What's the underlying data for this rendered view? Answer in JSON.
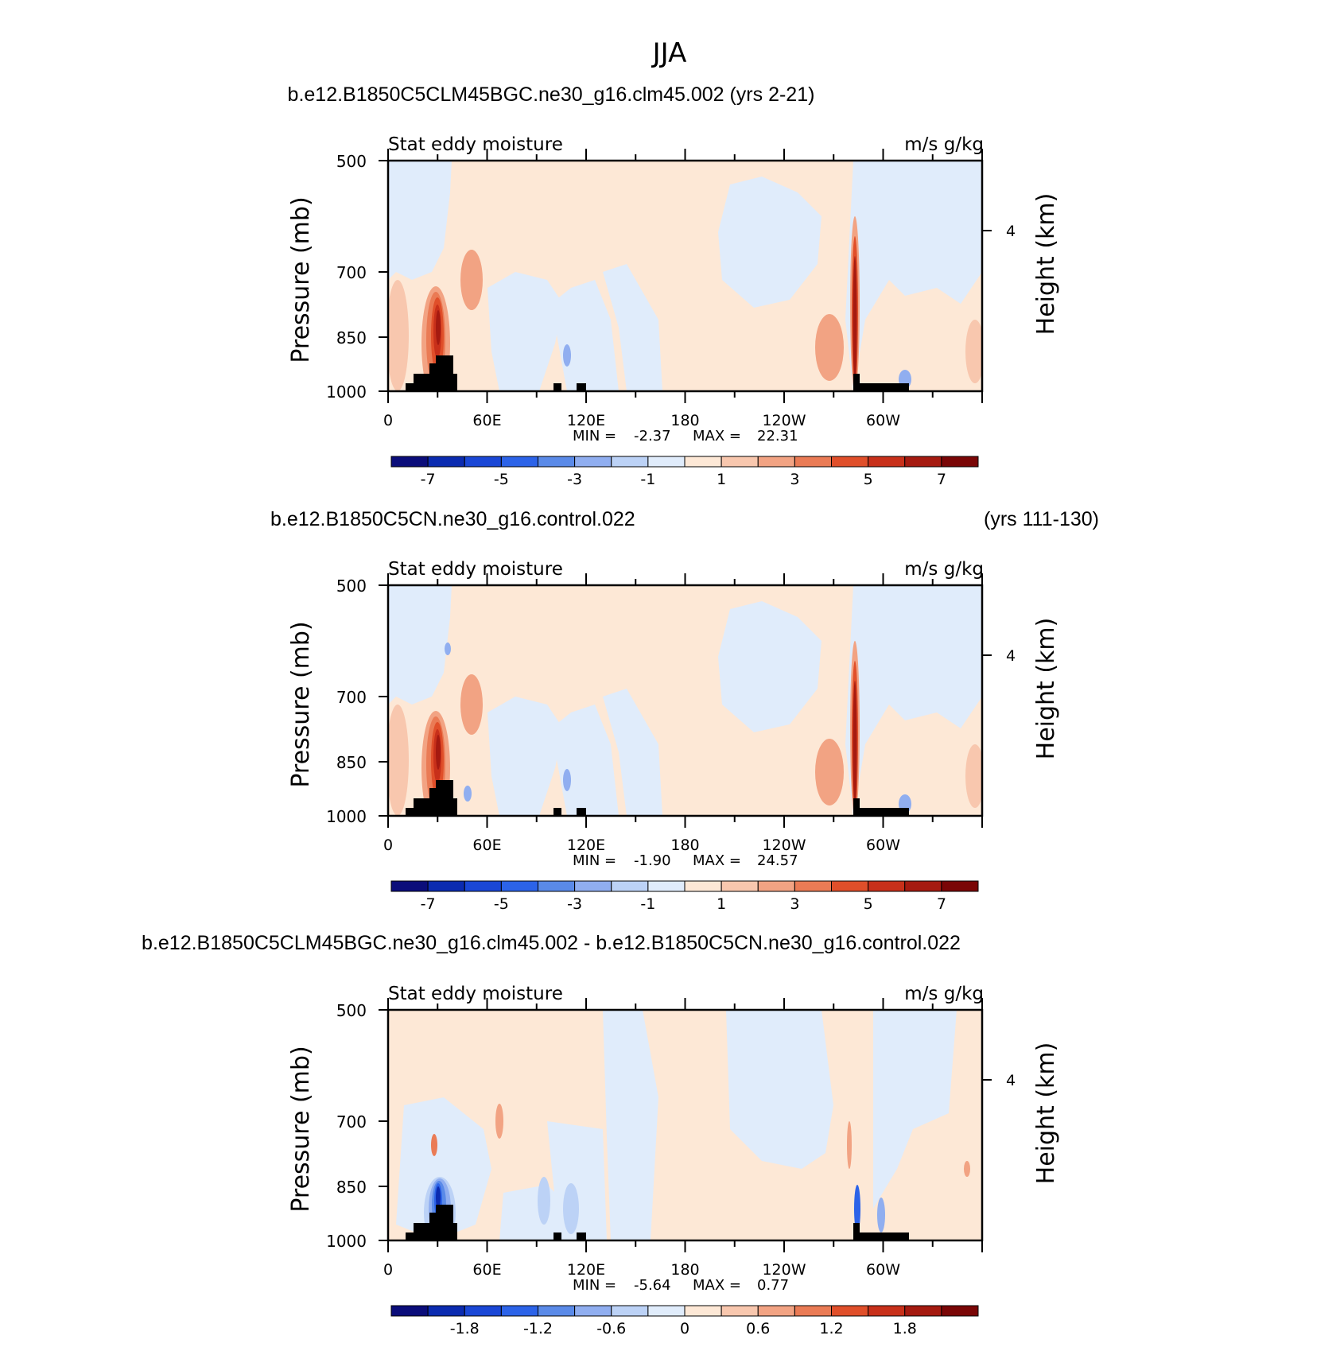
{
  "figure": {
    "title": "JJA"
  },
  "chart_data": [
    {
      "type": "heatmap",
      "title": "b.e12.B1850C5CLM45BGC.ne30_g16.clm45.002 (yrs 2-21)",
      "title_right": "",
      "left_label": "Stat eddy moisture",
      "right_label": "m/s g/kg",
      "ylabel": "Pressure (mb)",
      "y2label": "Height (km)",
      "y_ticks": [
        "500",
        "700",
        "850",
        "1000"
      ],
      "y2_ticks": [
        "4"
      ],
      "x_ticks": [
        "0",
        "60E",
        "120E",
        "180",
        "120W",
        "60W"
      ],
      "stats": {
        "min_label": "MIN =",
        "min": "-2.37",
        "max_label": "MAX =",
        "max": "22.31"
      },
      "colorbar_labels": [
        "-7",
        "-5",
        "-3",
        "-1",
        "1",
        "3",
        "5",
        "7"
      ]
    },
    {
      "type": "heatmap",
      "title": "b.e12.B1850C5CN.ne30_g16.control.022",
      "title_right": "(yrs 111-130)",
      "left_label": "Stat eddy moisture",
      "right_label": "m/s g/kg",
      "ylabel": "Pressure (mb)",
      "y2label": "Height (km)",
      "y_ticks": [
        "500",
        "700",
        "850",
        "1000"
      ],
      "y2_ticks": [
        "4"
      ],
      "x_ticks": [
        "0",
        "60E",
        "120E",
        "180",
        "120W",
        "60W"
      ],
      "stats": {
        "min_label": "MIN =",
        "min": "-1.90",
        "max_label": "MAX =",
        "max": "24.57"
      },
      "colorbar_labels": [
        "-7",
        "-5",
        "-3",
        "-1",
        "1",
        "3",
        "5",
        "7"
      ]
    },
    {
      "type": "heatmap",
      "title": "b.e12.B1850C5CLM45BGC.ne30_g16.clm45.002 - b.e12.B1850C5CN.ne30_g16.control.022",
      "title_right": "",
      "left_label": "Stat eddy moisture",
      "right_label": "m/s g/kg",
      "ylabel": "Pressure (mb)",
      "y2label": "Height (km)",
      "y_ticks": [
        "500",
        "700",
        "850",
        "1000"
      ],
      "y2_ticks": [
        "4"
      ],
      "x_ticks": [
        "0",
        "60E",
        "120E",
        "180",
        "120W",
        "60W"
      ],
      "stats": {
        "min_label": "MIN =",
        "min": "-5.64",
        "max_label": "MAX =",
        "max": "0.77"
      },
      "colorbar_labels": [
        "-1.8",
        "-1.2",
        "-0.6",
        "0",
        "0.6",
        "1.2",
        "1.8"
      ]
    }
  ],
  "colors": {
    "colorbar": [
      "#0b0d7a",
      "#0b2bb0",
      "#1a47d6",
      "#2c63e8",
      "#5a8ae8",
      "#90aef0",
      "#bcd2f6",
      "#e0ecfb",
      "#fde8d6",
      "#f8c7ae",
      "#f2a383",
      "#ea7b55",
      "#e04f2a",
      "#c8301a",
      "#a51a10",
      "#7a0606"
    ],
    "topography": "#000000"
  }
}
